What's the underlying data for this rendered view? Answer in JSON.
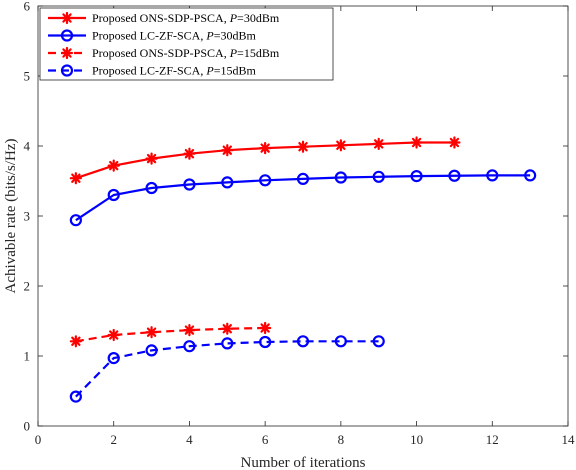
{
  "chart_data": {
    "type": "line",
    "xlabel": "Number of iterations",
    "ylabel": "Achivable rate (bits/s/Hz)",
    "xlim": [
      0,
      14
    ],
    "ylim": [
      0,
      6
    ],
    "xticks": [
      "0",
      "2",
      "4",
      "6",
      "8",
      "10",
      "12",
      "14"
    ],
    "yticks": [
      "0",
      "1",
      "2",
      "3",
      "4",
      "5",
      "6"
    ],
    "grid": false,
    "legend_position": "top-left",
    "series": [
      {
        "name": "Proposed ONS-SDP-PSCA, P=30dBm",
        "label_main": "Proposed ONS-SDP-PSCA, ",
        "label_var": "P",
        "label_rest": "=30dBm",
        "color": "#ff0000",
        "line": "solid",
        "marker": "asterisk",
        "x": [
          1,
          2,
          3,
          4,
          5,
          6,
          7,
          8,
          9,
          10,
          11
        ],
        "y": [
          3.54,
          3.72,
          3.82,
          3.89,
          3.94,
          3.97,
          3.99,
          4.01,
          4.03,
          4.05,
          4.05
        ]
      },
      {
        "name": "Proposed LC-ZF-SCA, P=30dBm",
        "label_main": "Proposed LC-ZF-SCA, ",
        "label_var": "P",
        "label_rest": "=30dBm",
        "color": "#0000ff",
        "line": "solid",
        "marker": "circle",
        "x": [
          1,
          2,
          3,
          4,
          5,
          6,
          7,
          8,
          9,
          10,
          11,
          12,
          13
        ],
        "y": [
          2.94,
          3.3,
          3.4,
          3.45,
          3.48,
          3.51,
          3.53,
          3.55,
          3.56,
          3.57,
          3.575,
          3.58,
          3.58
        ]
      },
      {
        "name": "Proposed ONS-SDP-PSCA, P=15dBm",
        "label_main": "Proposed ONS-SDP-PSCA, ",
        "label_var": "P",
        "label_rest": "=15dBm",
        "color": "#ff0000",
        "line": "dashed",
        "marker": "asterisk",
        "x": [
          1,
          2,
          3,
          4,
          5,
          6
        ],
        "y": [
          1.21,
          1.3,
          1.34,
          1.37,
          1.39,
          1.4
        ]
      },
      {
        "name": "Proposed LC-ZF-SCA, P=15dBm",
        "label_main": "Proposed LC-ZF-SCA, ",
        "label_var": "P",
        "label_rest": "=15dBm",
        "color": "#0000ff",
        "line": "dashed",
        "marker": "circle",
        "x": [
          1,
          2,
          3,
          4,
          5,
          6,
          7,
          8,
          9
        ],
        "y": [
          0.42,
          0.97,
          1.08,
          1.14,
          1.18,
          1.2,
          1.21,
          1.21,
          1.21
        ]
      }
    ]
  }
}
